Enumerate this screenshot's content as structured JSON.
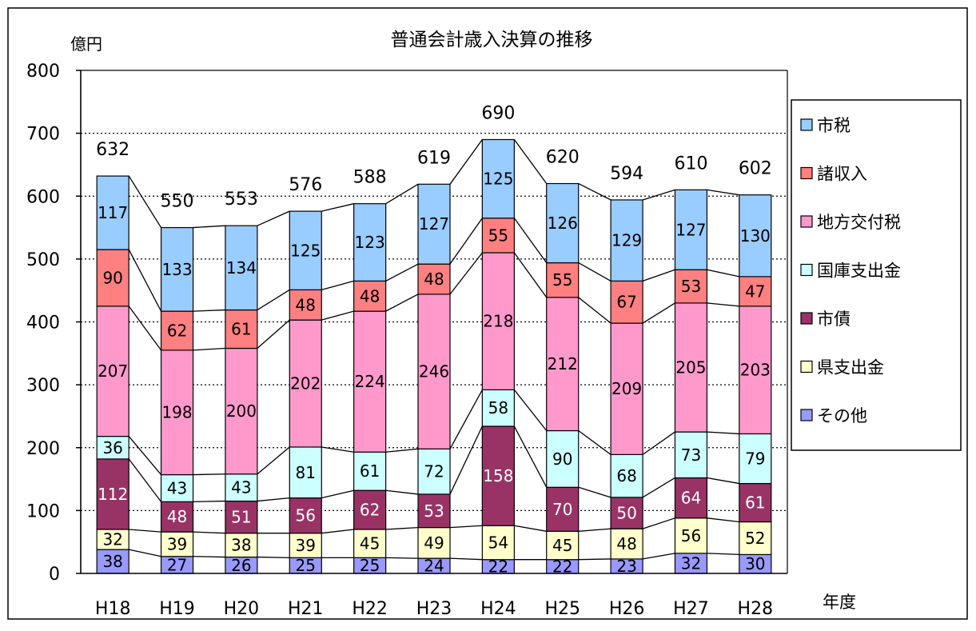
{
  "chart_data": {
    "type": "bar",
    "stacked": true,
    "title": "普通会計歳入決算の推移",
    "ylabel": "億円",
    "xlabel": "年度",
    "ylim": [
      0,
      800
    ],
    "yticks": [
      0,
      100,
      200,
      300,
      400,
      500,
      600,
      700,
      800
    ],
    "grid": true,
    "legend_position": "right",
    "categories": [
      "H18",
      "H19",
      "H20",
      "H21",
      "H22",
      "H23",
      "H24",
      "H25",
      "H26",
      "H27",
      "H28"
    ],
    "totals": [
      632,
      550,
      553,
      576,
      588,
      619,
      690,
      620,
      594,
      610,
      602
    ],
    "series": [
      {
        "name": "その他",
        "color": "#9999ff",
        "values": [
          38,
          27,
          26,
          25,
          25,
          24,
          22,
          22,
          23,
          32,
          30
        ]
      },
      {
        "name": "県支出金",
        "color": "#ffffcc",
        "values": [
          32,
          39,
          38,
          39,
          45,
          49,
          54,
          45,
          48,
          56,
          52
        ]
      },
      {
        "name": "市債",
        "color": "#993366",
        "values": [
          112,
          48,
          51,
          56,
          62,
          53,
          158,
          70,
          50,
          64,
          61
        ]
      },
      {
        "name": "国庫支出金",
        "color": "#ccffff",
        "values": [
          36,
          43,
          43,
          81,
          61,
          72,
          58,
          90,
          68,
          73,
          79
        ]
      },
      {
        "name": "地方交付税",
        "color": "#ff99cc",
        "values": [
          207,
          198,
          200,
          202,
          224,
          246,
          218,
          212,
          209,
          205,
          203
        ]
      },
      {
        "name": "諸収入",
        "color": "#ff8080",
        "values": [
          90,
          62,
          61,
          48,
          48,
          48,
          55,
          55,
          67,
          53,
          47
        ]
      },
      {
        "name": "市税",
        "color": "#99ccff",
        "values": [
          117,
          133,
          134,
          125,
          123,
          127,
          125,
          126,
          129,
          127,
          130
        ]
      }
    ],
    "legend_order": [
      "市税",
      "諸収入",
      "地方交付税",
      "国庫支出金",
      "市債",
      "県支出金",
      "その他"
    ]
  }
}
